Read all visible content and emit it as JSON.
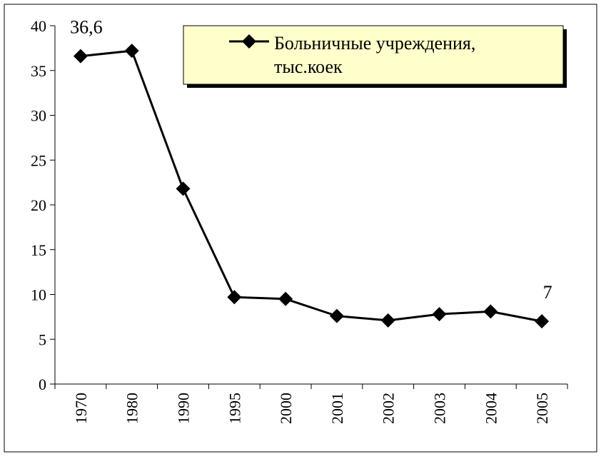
{
  "chart_data": {
    "type": "line",
    "categories": [
      "1970",
      "1980",
      "1990",
      "1995",
      "2000",
      "2001",
      "2002",
      "2003",
      "2004",
      "2005"
    ],
    "series": [
      {
        "name": "Больничные учреждения, тыс.коек",
        "name_lines": [
          "Больничные учреждения,",
          "тыс.коек"
        ],
        "values": [
          36.6,
          37.2,
          21.8,
          9.7,
          9.5,
          7.6,
          7.1,
          7.8,
          8.1,
          7.0
        ],
        "color": "#000000",
        "marker": "diamond"
      }
    ],
    "data_labels": [
      {
        "index": 0,
        "text": "36,6"
      },
      {
        "index": 9,
        "text": "7"
      }
    ],
    "ylim": [
      0,
      40
    ],
    "yticks": [
      "0",
      "5",
      "10",
      "15",
      "20",
      "25",
      "30",
      "35",
      "40"
    ],
    "title": "",
    "xlabel": "",
    "ylabel": "",
    "grid": false,
    "legend_position": "top-right",
    "legend_background": "#ffffcc"
  }
}
